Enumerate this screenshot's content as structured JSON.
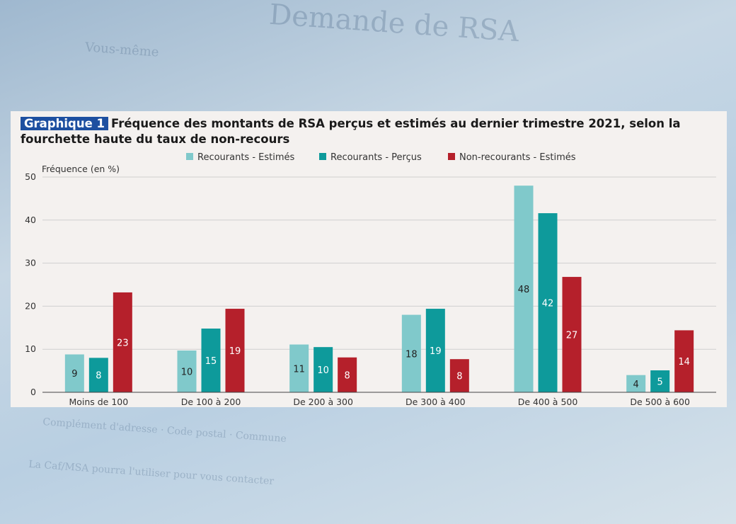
{
  "chart_data": {
    "type": "bar",
    "tag": "Graphique 1",
    "title": "Fréquence des montants de RSA perçus et estimés au dernier trimestre 2021, selon la fourchette haute du taux de non-recours",
    "ylabel": "Fréquence (en %)",
    "xlabel": "",
    "ylim": [
      0,
      50
    ],
    "yticks": [
      0,
      10,
      20,
      30,
      40,
      50
    ],
    "grid": true,
    "legend_position": "top-center",
    "categories": [
      "Moins de 100",
      "De 100 à 200",
      "De 200 à 300",
      "De 300 à 400",
      "De 400 à 500",
      "De 500 à 600"
    ],
    "series": [
      {
        "name": "Recourants - Estimés",
        "color": "#80c9cb",
        "label_color": "#222222",
        "values": [
          8.8,
          9.7,
          11.1,
          18,
          48,
          4
        ],
        "labels": [
          "9",
          "10",
          "11",
          "18",
          "48",
          "4"
        ]
      },
      {
        "name": "Recourants - Perçus",
        "color": "#0e9a9b",
        "label_color": "#ffffff",
        "values": [
          8,
          14.8,
          10.5,
          19.4,
          41.6,
          5.1
        ],
        "labels": [
          "8",
          "15",
          "10",
          "19",
          "42",
          "5"
        ]
      },
      {
        "name": "Non-recourants - Estimés",
        "color": "#b5202b",
        "label_color": "#ffffff",
        "values": [
          23.2,
          19.4,
          8.1,
          7.7,
          26.8,
          14.4
        ],
        "labels": [
          "23",
          "19",
          "8",
          "8",
          "27",
          "14"
        ]
      }
    ]
  }
}
